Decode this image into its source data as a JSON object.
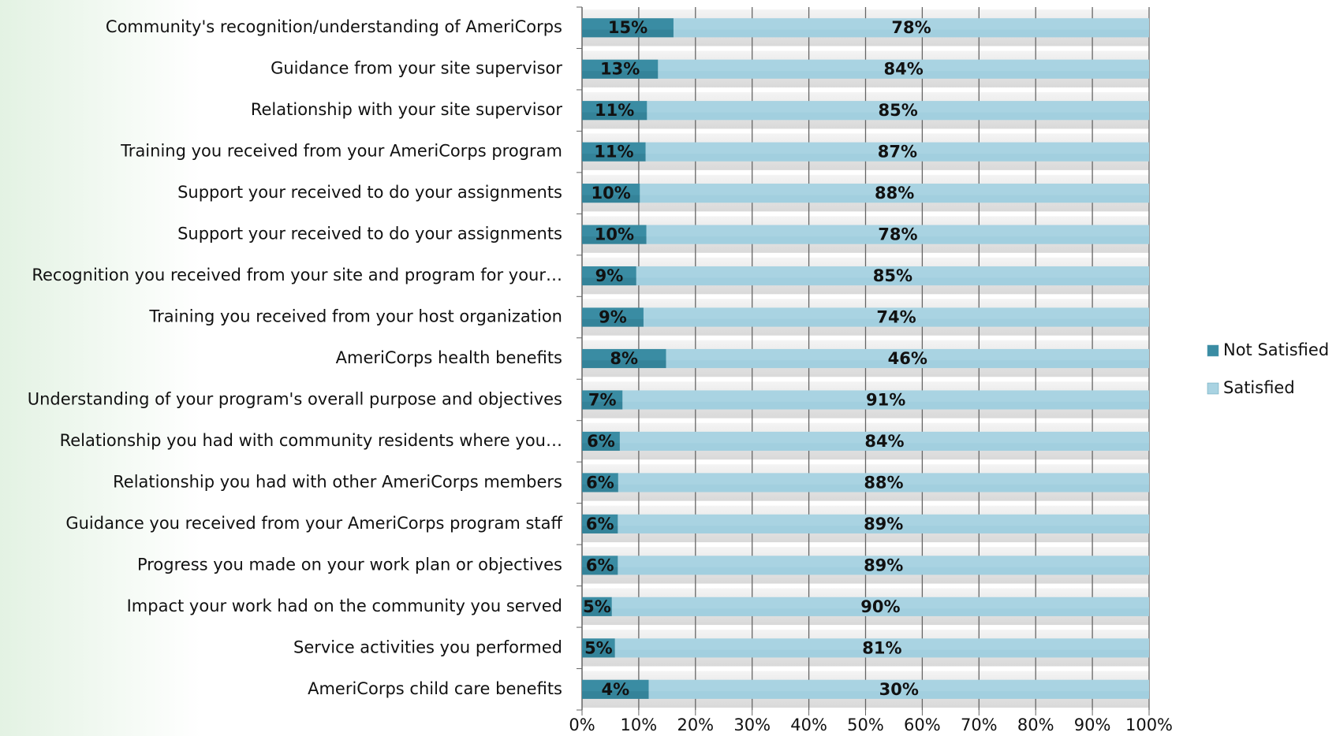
{
  "chart_data": {
    "type": "bar",
    "orientation": "horizontal",
    "stack": "percent",
    "categories": [
      "Community's recognition/understanding of AmeriCorps",
      "Guidance from your site supervisor",
      "Relationship with your site supervisor",
      "Training you received from your AmeriCorps program",
      "Support your received to do your assignments",
      "Support your received to do your assignments",
      "Recognition you received from your site and program for your…",
      "Training you received from your host organization",
      "AmeriCorps health benefits",
      "Understanding of your program's overall purpose and objectives",
      "Relationship you had with community residents where you…",
      "Relationship you had with other AmeriCorps members",
      "Guidance you received from your AmeriCorps program staff",
      "Progress you made on your work plan or objectives",
      "Impact your work had on the community you served",
      "Service activities you performed",
      "AmeriCorps child care benefits"
    ],
    "series": [
      {
        "name": "Not Satisfied",
        "color": "#3a8ca3",
        "values": [
          15,
          13,
          11,
          11,
          10,
          10,
          9,
          9,
          8,
          7,
          6,
          6,
          6,
          6,
          5,
          5,
          4
        ],
        "value_labels": [
          "15%",
          "13%",
          "11%",
          "11%",
          "10%",
          "10%",
          "9%",
          "9%",
          "8%",
          "7%",
          "6%",
          "6%",
          "6%",
          "6%",
          "5%",
          "5%",
          "4%"
        ]
      },
      {
        "name": "Satisfied",
        "color": "#a9d3e2",
        "values": [
          78,
          84,
          85,
          87,
          88,
          78,
          85,
          74,
          46,
          91,
          84,
          88,
          89,
          89,
          90,
          81,
          30
        ],
        "value_labels": [
          "78%",
          "84%",
          "85%",
          "87%",
          "88%",
          "78%",
          "85%",
          "74%",
          "46%",
          "91%",
          "84%",
          "88%",
          "89%",
          "89%",
          "90%",
          "81%",
          "30%"
        ]
      }
    ],
    "xlim": [
      0,
      100
    ],
    "xticks": [
      {
        "value": 0,
        "label": "0%"
      },
      {
        "value": 10,
        "label": "10%"
      },
      {
        "value": 20,
        "label": "20%"
      },
      {
        "value": 30,
        "label": "30%"
      },
      {
        "value": 40,
        "label": "40%"
      },
      {
        "value": 50,
        "label": "50%"
      },
      {
        "value": 60,
        "label": "60%"
      },
      {
        "value": 70,
        "label": "70%"
      },
      {
        "value": 80,
        "label": "80%"
      },
      {
        "value": 90,
        "label": "90%"
      },
      {
        "value": 100,
        "label": "100%"
      }
    ],
    "grid": true,
    "legend": "right"
  }
}
